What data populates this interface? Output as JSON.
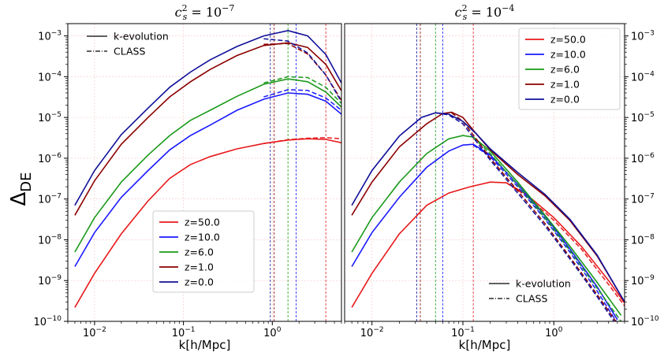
{
  "chart_data": {
    "type": "line",
    "ylabel_main": "Δ",
    "ylabel_sub": "DE",
    "xlabel": "k[h/Mpc]",
    "x_range": [
      0.005,
      6.0
    ],
    "y_range": [
      1e-10,
      0.002
    ],
    "x_ticks": [
      {
        "label_base": "10",
        "label_exp": "−2",
        "value": 0.01
      },
      {
        "label_base": "10",
        "label_exp": "−1",
        "value": 0.1
      },
      {
        "label_base": "10",
        "label_exp": "0",
        "value": 1
      }
    ],
    "y_ticks": [
      {
        "label_base": "10",
        "label_exp": "−10",
        "value": 1e-10
      },
      {
        "label_base": "10",
        "label_exp": "−9",
        "value": 1e-09
      },
      {
        "label_base": "10",
        "label_exp": "−8",
        "value": 1e-08
      },
      {
        "label_base": "10",
        "label_exp": "−7",
        "value": 1e-07
      },
      {
        "label_base": "10",
        "label_exp": "−6",
        "value": 1e-06
      },
      {
        "label_base": "10",
        "label_exp": "−5",
        "value": 1e-05
      },
      {
        "label_base": "10",
        "label_exp": "−4",
        "value": 0.0001
      },
      {
        "label_base": "10",
        "label_exp": "−3",
        "value": 0.001
      }
    ],
    "panels": [
      {
        "id": "left",
        "title_base": "c",
        "title_sub": "s",
        "title_sup": "2",
        "title_rest": " = 10",
        "title_exp": "−7",
        "style_legend": {
          "solid": "k-evolution",
          "dashed": "CLASS",
          "position": "top-left"
        },
        "z_legend_position": "bottom-center",
        "vlines": [
          {
            "k": 4.0,
            "color": "#e8191b"
          },
          {
            "k": 1.85,
            "color": "#1a1aff"
          },
          {
            "k": 1.5,
            "color": "#1a9a1a"
          },
          {
            "k": 1.05,
            "color": "#8b0000"
          },
          {
            "k": 0.95,
            "color": "#10109a"
          }
        ],
        "series": [
          {
            "name": "z=50.0",
            "color": "#e8191b",
            "solid": [
              [
                0.006,
                2.2e-10
              ],
              [
                0.01,
                1.5e-09
              ],
              [
                0.02,
                1.4e-08
              ],
              [
                0.04,
                9e-08
              ],
              [
                0.07,
                3.2e-07
              ],
              [
                0.12,
                7e-07
              ],
              [
                0.2,
                1.1e-06
              ],
              [
                0.4,
                1.7e-06
              ],
              [
                0.8,
                2.3e-06
              ],
              [
                1.5,
                2.8e-06
              ],
              [
                2.5,
                3e-06
              ],
              [
                4.0,
                2.9e-06
              ],
              [
                6.0,
                2.4e-06
              ]
            ],
            "dashed": [
              [
                0.8,
                2.3e-06
              ],
              [
                1.5,
                2.85e-06
              ],
              [
                2.5,
                3.1e-06
              ],
              [
                4.0,
                3.2e-06
              ],
              [
                6.0,
                3e-06
              ]
            ]
          },
          {
            "name": "z=10.0",
            "color": "#1a1aff",
            "solid": [
              [
                0.006,
                2.2e-09
              ],
              [
                0.01,
                1.5e-08
              ],
              [
                0.02,
                1.1e-07
              ],
              [
                0.04,
                5e-07
              ],
              [
                0.07,
                1.6e-06
              ],
              [
                0.12,
                3.6e-06
              ],
              [
                0.2,
                6.5e-06
              ],
              [
                0.4,
                1.5e-05
              ],
              [
                0.8,
                2.8e-05
              ],
              [
                1.5,
                4e-05
              ],
              [
                2.5,
                3.7e-05
              ],
              [
                4.0,
                2.5e-05
              ],
              [
                6.0,
                1.2e-05
              ]
            ],
            "dashed": [
              [
                0.8,
                3.2e-05
              ],
              [
                1.5,
                4.8e-05
              ],
              [
                2.5,
                4.6e-05
              ],
              [
                4.0,
                3e-05
              ],
              [
                6.0,
                1.5e-05
              ]
            ]
          },
          {
            "name": "z=6.0",
            "color": "#1a9a1a",
            "solid": [
              [
                0.006,
                5e-09
              ],
              [
                0.01,
                3.5e-08
              ],
              [
                0.02,
                2.6e-07
              ],
              [
                0.04,
                1.2e-06
              ],
              [
                0.07,
                3.6e-06
              ],
              [
                0.12,
                8.5e-06
              ],
              [
                0.2,
                1.5e-05
              ],
              [
                0.4,
                3.3e-05
              ],
              [
                0.8,
                6.5e-05
              ],
              [
                1.5,
                8.8e-05
              ],
              [
                2.5,
                7.5e-05
              ],
              [
                4.0,
                4.2e-05
              ],
              [
                6.0,
                1.8e-05
              ]
            ],
            "dashed": [
              [
                0.8,
                7e-05
              ],
              [
                1.5,
                0.0001
              ],
              [
                2.5,
                9.5e-05
              ],
              [
                4.0,
                5.5e-05
              ],
              [
                6.0,
                2.2e-05
              ]
            ]
          },
          {
            "name": "z=1.0",
            "color": "#8b0000",
            "solid": [
              [
                0.006,
                4e-08
              ],
              [
                0.01,
                2.8e-07
              ],
              [
                0.02,
                2.2e-06
              ],
              [
                0.04,
                1e-05
              ],
              [
                0.07,
                3.2e-05
              ],
              [
                0.12,
                7.5e-05
              ],
              [
                0.2,
                0.00015
              ],
              [
                0.4,
                0.00033
              ],
              [
                0.8,
                0.00058
              ],
              [
                1.5,
                0.00068
              ],
              [
                2.5,
                0.00052
              ],
              [
                4.0,
                0.0002
              ],
              [
                6.0,
                4.5e-05
              ]
            ],
            "dashed": [
              [
                0.8,
                0.00062
              ],
              [
                1.5,
                0.00065
              ],
              [
                2.5,
                0.00036
              ],
              [
                4.0,
                0.00011
              ],
              [
                6.0,
                2.6e-05
              ]
            ]
          },
          {
            "name": "z=0.0",
            "color": "#10109a",
            "solid": [
              [
                0.006,
                7e-08
              ],
              [
                0.01,
                5e-07
              ],
              [
                0.02,
                3.8e-06
              ],
              [
                0.04,
                1.7e-05
              ],
              [
                0.07,
                5.5e-05
              ],
              [
                0.12,
                0.00013
              ],
              [
                0.2,
                0.00026
              ],
              [
                0.4,
                0.00055
              ],
              [
                0.8,
                0.001
              ],
              [
                1.5,
                0.00135
              ],
              [
                2.5,
                0.001
              ],
              [
                4.0,
                0.00035
              ],
              [
                6.0,
                7e-05
              ]
            ],
            "dashed": [
              [
                0.8,
                0.00085
              ],
              [
                1.5,
                0.00075
              ],
              [
                2.5,
                0.00038
              ],
              [
                4.0,
                0.00011
              ],
              [
                6.0,
                2.4e-05
              ]
            ]
          }
        ]
      },
      {
        "id": "right",
        "title_base": "c",
        "title_sub": "s",
        "title_sup": "2",
        "title_rest": " = 10",
        "title_exp": "−4",
        "style_legend": {
          "solid": "k-evolution",
          "dashed": "CLASS",
          "position": "bottom-right"
        },
        "z_legend_position": "top-right",
        "vlines": [
          {
            "k": 0.13,
            "color": "#e8191b"
          },
          {
            "k": 0.06,
            "color": "#1a1aff"
          },
          {
            "k": 0.05,
            "color": "#1a9a1a"
          },
          {
            "k": 0.034,
            "color": "#8b0000"
          },
          {
            "k": 0.031,
            "color": "#10109a"
          }
        ],
        "series": [
          {
            "name": "z=50.0",
            "color": "#e8191b",
            "solid": [
              [
                0.006,
                2.2e-10
              ],
              [
                0.01,
                1.5e-09
              ],
              [
                0.02,
                1.4e-08
              ],
              [
                0.04,
                7e-08
              ],
              [
                0.07,
                1.4e-07
              ],
              [
                0.12,
                2e-07
              ],
              [
                0.2,
                2.6e-07
              ],
              [
                0.3,
                2.5e-07
              ],
              [
                0.5,
                1.3e-07
              ],
              [
                1.0,
                3.5e-08
              ],
              [
                2.0,
                7e-09
              ],
              [
                4.0,
                1e-09
              ],
              [
                6.0,
                2.8e-10
              ]
            ],
            "dashed": [
              [
                0.3,
                2.5e-07
              ],
              [
                0.5,
                1.2e-07
              ],
              [
                1.0,
                3e-08
              ],
              [
                2.0,
                6e-09
              ],
              [
                4.0,
                8e-10
              ],
              [
                6.0,
                2.4e-10
              ]
            ]
          },
          {
            "name": "z=10.0",
            "color": "#1a1aff",
            "solid": [
              [
                0.006,
                2.2e-09
              ],
              [
                0.01,
                1.5e-08
              ],
              [
                0.02,
                1.1e-07
              ],
              [
                0.04,
                6e-07
              ],
              [
                0.07,
                1.5e-06
              ],
              [
                0.1,
                2.1e-06
              ],
              [
                0.13,
                2.2e-06
              ],
              [
                0.2,
                1.2e-06
              ],
              [
                0.4,
                2.3e-07
              ],
              [
                0.8,
                3.8e-08
              ],
              [
                1.5,
                6e-09
              ],
              [
                3.0,
                7e-10
              ],
              [
                5.0,
                1.1e-10
              ]
            ],
            "dashed": [
              [
                0.13,
                2.1e-06
              ],
              [
                0.2,
                1.1e-06
              ],
              [
                0.4,
                2e-07
              ],
              [
                0.8,
                3.2e-08
              ],
              [
                1.5,
                5e-09
              ],
              [
                3.0,
                5.5e-10
              ],
              [
                5.0,
                9e-11
              ]
            ]
          },
          {
            "name": "z=6.0",
            "color": "#1a9a1a",
            "solid": [
              [
                0.006,
                5e-09
              ],
              [
                0.01,
                3.5e-08
              ],
              [
                0.02,
                2.6e-07
              ],
              [
                0.04,
                1.3e-06
              ],
              [
                0.07,
                3e-06
              ],
              [
                0.1,
                3.6e-06
              ],
              [
                0.13,
                3.3e-06
              ],
              [
                0.2,
                1.5e-06
              ],
              [
                0.4,
                2.6e-07
              ],
              [
                0.8,
                4e-08
              ],
              [
                1.5,
                7e-09
              ],
              [
                3.0,
                9e-10
              ],
              [
                5.5,
                1.4e-10
              ]
            ],
            "dashed": [
              [
                0.13,
                3.2e-06
              ],
              [
                0.2,
                1.3e-06
              ],
              [
                0.4,
                2.2e-07
              ],
              [
                0.8,
                3.4e-08
              ],
              [
                1.5,
                5.5e-09
              ],
              [
                3.0,
                6.5e-10
              ],
              [
                5.5,
                1e-10
              ]
            ]
          },
          {
            "name": "z=1.0",
            "color": "#8b0000",
            "solid": [
              [
                0.006,
                4e-08
              ],
              [
                0.01,
                2.6e-07
              ],
              [
                0.02,
                1.9e-06
              ],
              [
                0.04,
                7e-06
              ],
              [
                0.06,
                1.25e-05
              ],
              [
                0.075,
                1.35e-05
              ],
              [
                0.1,
                1e-05
              ],
              [
                0.14,
                4e-06
              ],
              [
                0.2,
                1.6e-06
              ],
              [
                0.4,
                4e-07
              ],
              [
                0.8,
                1.2e-07
              ],
              [
                1.5,
                3e-08
              ],
              [
                3.0,
                4e-09
              ],
              [
                6.0,
                3e-10
              ]
            ],
            "dashed": [
              [
                0.075,
                1.3e-05
              ],
              [
                0.1,
                8e-06
              ],
              [
                0.14,
                3e-06
              ],
              [
                0.2,
                1e-06
              ],
              [
                0.4,
                1.6e-07
              ],
              [
                0.8,
                2.5e-08
              ],
              [
                1.5,
                3.8e-09
              ],
              [
                3.0,
                4.5e-10
              ],
              [
                4.8,
                1e-10
              ]
            ]
          },
          {
            "name": "z=0.0",
            "color": "#10109a",
            "solid": [
              [
                0.006,
                7e-08
              ],
              [
                0.01,
                5e-07
              ],
              [
                0.02,
                3.5e-06
              ],
              [
                0.035,
                1e-05
              ],
              [
                0.05,
                1.3e-05
              ],
              [
                0.07,
                1.2e-05
              ],
              [
                0.1,
                8e-06
              ],
              [
                0.14,
                4e-06
              ],
              [
                0.2,
                1.7e-06
              ],
              [
                0.4,
                4.5e-07
              ],
              [
                0.8,
                1.3e-07
              ],
              [
                1.5,
                3.2e-08
              ],
              [
                3.0,
                4.2e-09
              ],
              [
                6.0,
                3e-10
              ]
            ],
            "dashed": [
              [
                0.05,
                1.3e-05
              ],
              [
                0.07,
                1.15e-05
              ],
              [
                0.1,
                7e-06
              ],
              [
                0.14,
                2.6e-06
              ],
              [
                0.2,
                9e-07
              ],
              [
                0.4,
                1.4e-07
              ],
              [
                0.8,
                2.2e-08
              ],
              [
                1.5,
                3.4e-09
              ],
              [
                3.0,
                4e-10
              ],
              [
                4.6,
                1e-10
              ]
            ]
          }
        ]
      }
    ]
  }
}
